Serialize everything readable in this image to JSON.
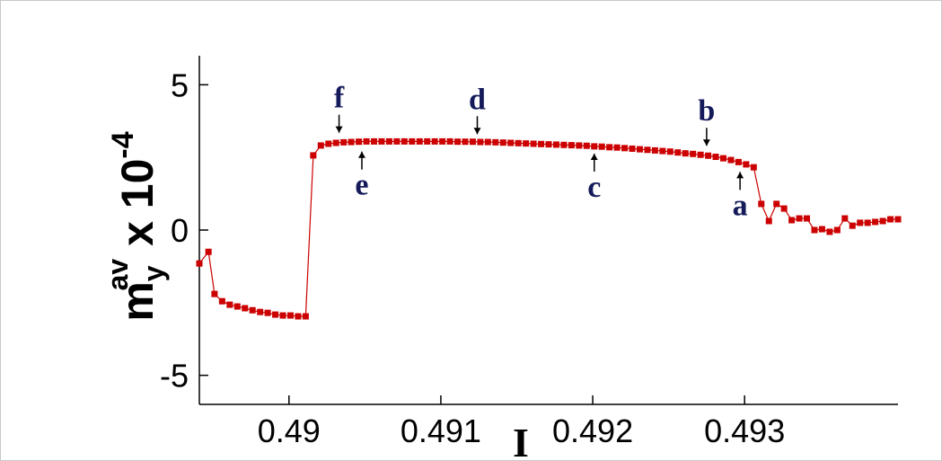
{
  "chart_data": {
    "type": "line",
    "xlabel": "I",
    "ylabel": {
      "base": "m",
      "sub": "y",
      "sup": "av",
      "mid": " x 10",
      "exp": "-4"
    },
    "x": [
      0.48941,
      0.48947,
      0.48951,
      0.48956,
      0.48961,
      0.48966,
      0.48971,
      0.48976,
      0.48981,
      0.48986,
      0.48991,
      0.48996,
      0.49001,
      0.49006,
      0.49011,
      0.49016,
      0.49021,
      0.49026,
      0.49031,
      0.49036,
      0.49041,
      0.49046,
      0.49051,
      0.49056,
      0.49061,
      0.49066,
      0.49071,
      0.49076,
      0.49081,
      0.49086,
      0.49091,
      0.49096,
      0.49101,
      0.49106,
      0.49111,
      0.49116,
      0.49121,
      0.49126,
      0.49131,
      0.49136,
      0.49141,
      0.49146,
      0.49151,
      0.49156,
      0.49161,
      0.49166,
      0.49171,
      0.49176,
      0.49181,
      0.49186,
      0.49191,
      0.49196,
      0.49201,
      0.49206,
      0.49211,
      0.49216,
      0.49221,
      0.49226,
      0.49231,
      0.49236,
      0.49241,
      0.49246,
      0.49251,
      0.49256,
      0.49261,
      0.49266,
      0.49271,
      0.49276,
      0.49281,
      0.49286,
      0.49291,
      0.49296,
      0.49301,
      0.49306,
      0.49311,
      0.49316,
      0.49321,
      0.49326,
      0.49331,
      0.49336,
      0.49341,
      0.49346,
      0.49351,
      0.49356,
      0.49361,
      0.49366,
      0.49371,
      0.49376,
      0.49381,
      0.49386,
      0.49391,
      0.49396,
      0.49401
    ],
    "series": [
      {
        "color": "#cc0000",
        "values": [
          -1.15,
          -0.75,
          -2.2,
          -2.45,
          -2.57,
          -2.63,
          -2.69,
          -2.76,
          -2.82,
          -2.85,
          -2.91,
          -2.94,
          -2.94,
          -2.97,
          -2.97,
          2.57,
          2.91,
          2.97,
          3.0,
          3.02,
          3.03,
          3.04,
          3.05,
          3.05,
          3.05,
          3.05,
          3.05,
          3.05,
          3.05,
          3.05,
          3.05,
          3.05,
          3.05,
          3.05,
          3.04,
          3.04,
          3.04,
          3.03,
          3.03,
          3.02,
          3.01,
          3.0,
          2.99,
          2.98,
          2.97,
          2.96,
          2.95,
          2.94,
          2.93,
          2.92,
          2.91,
          2.9,
          2.88,
          2.87,
          2.85,
          2.84,
          2.82,
          2.8,
          2.78,
          2.76,
          2.74,
          2.72,
          2.7,
          2.67,
          2.64,
          2.62,
          2.59,
          2.56,
          2.52,
          2.47,
          2.41,
          2.34,
          2.26,
          2.16,
          0.9,
          0.31,
          0.9,
          0.74,
          0.34,
          0.4,
          0.4,
          0.0,
          0.03,
          -0.06,
          0.0,
          0.4,
          0.15,
          0.25,
          0.25,
          0.28,
          0.31,
          0.37,
          0.37
        ]
      }
    ],
    "xlim": [
      0.48941,
      0.49401
    ],
    "ylim": [
      -6,
      6
    ],
    "xticks": [
      0.49,
      0.491,
      0.492,
      0.493
    ],
    "yticks": [
      -5,
      0,
      5
    ],
    "annotations": [
      {
        "text": "f",
        "x": 0.49033,
        "y": 3.35,
        "side": "above"
      },
      {
        "text": "e",
        "x": 0.49048,
        "y": 2.7,
        "side": "below"
      },
      {
        "text": "d",
        "x": 0.49124,
        "y": 3.3,
        "side": "above"
      },
      {
        "text": "c",
        "x": 0.49201,
        "y": 2.63,
        "side": "below"
      },
      {
        "text": "b",
        "x": 0.49275,
        "y": 2.9,
        "side": "above"
      },
      {
        "text": "a",
        "x": 0.49297,
        "y": 2.0,
        "side": "below"
      }
    ]
  }
}
